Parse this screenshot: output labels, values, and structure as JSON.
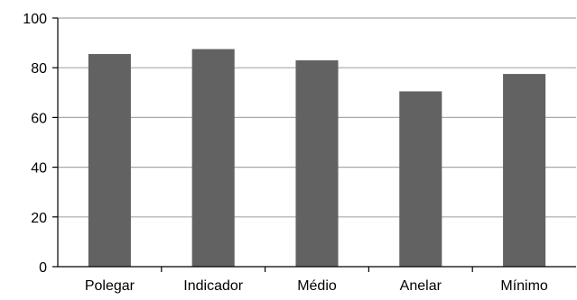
{
  "colors": {
    "bar": "#626262",
    "grid": "#a8a8a8",
    "axis": "#000000",
    "background": "#ffffff"
  },
  "chart_data": {
    "type": "bar",
    "categories": [
      "Polegar",
      "Indicador",
      "Médio",
      "Anelar",
      "Mínimo"
    ],
    "values": [
      85.5,
      87.5,
      83,
      70.5,
      77.5
    ],
    "ylim": [
      0,
      100
    ],
    "yticks": [
      "0",
      "20",
      "40",
      "60",
      "80",
      "100"
    ],
    "title": "",
    "xlabel": "",
    "ylabel": "",
    "grid": true,
    "legend": "none"
  }
}
